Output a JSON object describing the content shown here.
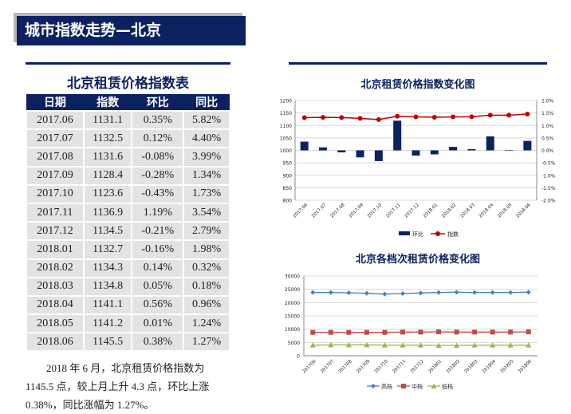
{
  "header": {
    "title": "城市指数走势—北京"
  },
  "table": {
    "title": "北京租赁价格指数表",
    "headers": [
      "日期",
      "指数",
      "环比",
      "同比"
    ],
    "rows": [
      [
        "2017.06",
        "1131.1",
        "0.35%",
        "5.82%"
      ],
      [
        "2017.07",
        "1132.5",
        "0.12%",
        "4.40%"
      ],
      [
        "2017.08",
        "1131.6",
        "-0.08%",
        "3.99%"
      ],
      [
        "2017.09",
        "1128.4",
        "-0.28%",
        "1.34%"
      ],
      [
        "2017.10",
        "1123.6",
        "-0.43%",
        "1.73%"
      ],
      [
        "2017.11",
        "1136.9",
        "1.19%",
        "3.54%"
      ],
      [
        "2017.12",
        "1134.5",
        "-0.21%",
        "2.79%"
      ],
      [
        "2018.01",
        "1132.7",
        "-0.16%",
        "1.98%"
      ],
      [
        "2018.02",
        "1134.3",
        "0.14%",
        "0.32%"
      ],
      [
        "2018.03",
        "1134.8",
        "0.05%",
        "0.18%"
      ],
      [
        "2018.04",
        "1141.1",
        "0.56%",
        "0.96%"
      ],
      [
        "2018.05",
        "1141.2",
        "0.01%",
        "1.24%"
      ],
      [
        "2018.06",
        "1145.5",
        "0.38%",
        "1.27%"
      ]
    ]
  },
  "paragraph": "2018 年 6 月，北京租赁价格指数为 1145.5 点，较上月上升 4.3 点，环比上涨 0.38%，同比涨幅为 1.27%。",
  "chart_data": [
    {
      "type": "bar+line",
      "title": "北京租赁价格指数变化图",
      "categories": [
        "2017.06",
        "2017.07",
        "2017.08",
        "2017.09",
        "2017.10",
        "2017.11",
        "2017.12",
        "2018.01",
        "2018.02",
        "2018.03",
        "2018.04",
        "2018.05",
        "2018.06"
      ],
      "series": [
        {
          "name": "环比",
          "type": "bar",
          "axis": "right",
          "values": [
            0.35,
            0.12,
            -0.08,
            -0.28,
            -0.43,
            1.19,
            -0.21,
            -0.16,
            0.14,
            0.05,
            0.56,
            0.01,
            0.38
          ],
          "color": "#0c2260"
        },
        {
          "name": "指数",
          "type": "line",
          "axis": "left",
          "values": [
            1131.1,
            1132.5,
            1131.6,
            1128.4,
            1123.6,
            1136.9,
            1134.5,
            1132.7,
            1134.3,
            1134.8,
            1141.1,
            1141.2,
            1145.5
          ],
          "color": "#c00000"
        }
      ],
      "ylim_left": [
        800,
        1200
      ],
      "yticks_left": [
        "1200",
        "1150",
        "1100",
        "1050",
        "1000",
        "950",
        "900",
        "850",
        "800"
      ],
      "ylim_right": [
        -2.0,
        2.0
      ],
      "yticks_right": [
        "2.0%",
        "1.5%",
        "1.0%",
        "0.5%",
        "0.0%",
        "-0.5%",
        "-1.0%",
        "-1.5%",
        "-2.0%"
      ],
      "legend": "bottom",
      "grid": true
    },
    {
      "type": "line",
      "title": "北京各档次租赁价格变化图",
      "categories": [
        "201706",
        "201707",
        "201708",
        "201709",
        "201710",
        "201711",
        "201712",
        "201801",
        "201802",
        "201803",
        "201804",
        "201805",
        "201806"
      ],
      "series": [
        {
          "name": "高档",
          "values": [
            23800,
            23800,
            23700,
            23500,
            23200,
            23400,
            23600,
            23800,
            23900,
            23800,
            23800,
            23800,
            23900
          ],
          "color": "#4a7ebb",
          "marker": "diamond"
        },
        {
          "name": "中档",
          "values": [
            8800,
            8800,
            8800,
            8800,
            8800,
            8900,
            8900,
            9000,
            8900,
            8900,
            8900,
            8900,
            9000
          ],
          "color": "#be4b48",
          "marker": "square"
        },
        {
          "name": "低档",
          "values": [
            4000,
            4100,
            4100,
            4100,
            4000,
            4000,
            4000,
            3900,
            3900,
            4000,
            4000,
            4000,
            4000
          ],
          "color": "#98b954",
          "marker": "triangle"
        }
      ],
      "ylim": [
        0,
        30000
      ],
      "yticks": [
        "30000",
        "25000",
        "20000",
        "15000",
        "10000",
        "5000",
        "0"
      ],
      "legend": "bottom",
      "grid": true
    }
  ]
}
